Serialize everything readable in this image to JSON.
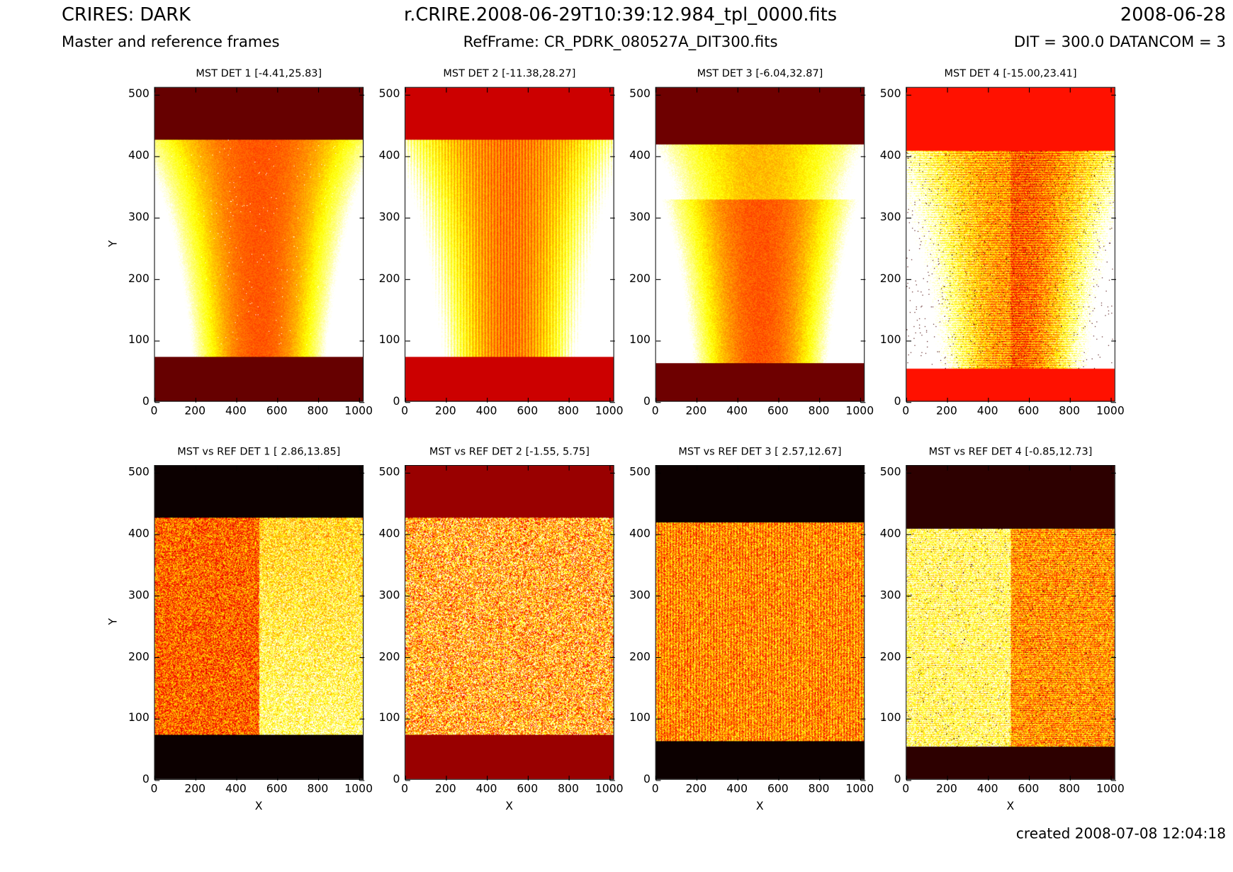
{
  "header": {
    "title_left": "CRIRES: DARK",
    "subtitle_left": "Master and reference frames",
    "title_center": "r.CRIRE.2008-06-29T10:39:12.984_tpl_0000.fits",
    "subtitle_center": "RefFrame: CR_PDRK_080527A_DIT300.fits",
    "title_right": "2008-06-28",
    "subtitle_right": "DIT = 300.0 DATANCOM = 3"
  },
  "footer": {
    "created": "created 2008-07-08 12:04:18"
  },
  "chart_data": {
    "type": "heatmap",
    "colormap": "hot",
    "xlabel": "X",
    "ylabel": "Y",
    "xlim": [
      0,
      1024
    ],
    "ylim": [
      0,
      512
    ],
    "xticks": [
      "0",
      "200",
      "400",
      "600",
      "800",
      "1000"
    ],
    "yticks": [
      "0",
      "100",
      "200",
      "300",
      "400",
      "500"
    ],
    "panels": [
      {
        "title": "MST DET 1 [-4.41,25.83]",
        "range": [
          -4.41,
          25.83
        ],
        "active_y": [
          73,
          428
        ],
        "mask_color": "#660000",
        "pattern": "u-shape"
      },
      {
        "title": "MST DET 2 [-11.38,28.27]",
        "range": [
          -11.38,
          28.27
        ],
        "active_y": [
          73,
          428
        ],
        "mask_color": "#cc0000",
        "pattern": "u-shape-vstripes"
      },
      {
        "title": "MST DET 3 [-6.04,32.87]",
        "range": [
          -6.04,
          32.87
        ],
        "active_y": [
          62,
          420
        ],
        "mask_color": "#6e0000",
        "pattern": "u-shape-band"
      },
      {
        "title": "MST DET 4 [-15.00,23.41]",
        "range": [
          -15.0,
          23.41
        ],
        "active_y": [
          53,
          410
        ],
        "mask_color": "#ff1100",
        "pattern": "u-shape-hstripes"
      },
      {
        "title": "MST vs REF DET 1 [ 2.86,13.85]",
        "range": [
          2.86,
          13.85
        ],
        "active_y": [
          73,
          428
        ],
        "mask_color": "#0c0000",
        "pattern": "split-dark-left"
      },
      {
        "title": "MST vs REF DET 2 [-1.55, 5.75]",
        "range": [
          -1.55,
          5.75
        ],
        "active_y": [
          73,
          428
        ],
        "mask_color": "#990000",
        "pattern": "noise"
      },
      {
        "title": "MST vs REF DET 3 [ 2.57,12.67]",
        "range": [
          2.57,
          12.67
        ],
        "active_y": [
          62,
          420
        ],
        "mask_color": "#0c0000",
        "pattern": "vstripes"
      },
      {
        "title": "MST vs REF DET 4 [-0.85,12.73]",
        "range": [
          -0.85,
          12.73
        ],
        "active_y": [
          53,
          410
        ],
        "mask_color": "#2d0000",
        "pattern": "split-bright-left"
      }
    ]
  }
}
